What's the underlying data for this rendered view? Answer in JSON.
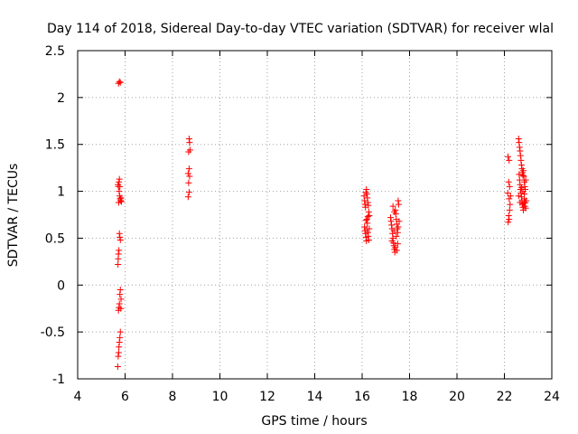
{
  "chart_data": {
    "type": "scatter",
    "title": "Day 114 of 2018, Sidereal Day-to-day VTEC variation (SDTVAR) for receiver wlal",
    "xlabel": "GPS time / hours",
    "ylabel": "SDTVAR / TECUs",
    "xlim": [
      4,
      24
    ],
    "ylim": [
      -1,
      2.5
    ],
    "xticks": [
      4,
      6,
      8,
      10,
      12,
      14,
      16,
      18,
      20,
      22,
      24
    ],
    "xtick_labels": [
      "4",
      "6",
      "8",
      "10",
      "12",
      "14",
      "16",
      "18",
      "20",
      "22",
      "24"
    ],
    "yticks": [
      -1,
      -0.5,
      0,
      0.5,
      1,
      1.5,
      2,
      2.5
    ],
    "ytick_labels": [
      "-1",
      "-0.5",
      "0",
      "0.5",
      "1",
      "1.5",
      "2",
      "2.5"
    ],
    "grid": true,
    "marker": "plus",
    "color": "#ff0000",
    "series": [
      {
        "name": "SDTVAR",
        "points": [
          [
            5.72,
            2.15
          ],
          [
            5.76,
            2.17
          ],
          [
            5.8,
            2.16
          ],
          [
            5.7,
            1.07
          ],
          [
            5.72,
            1.05
          ],
          [
            5.74,
            1.1
          ],
          [
            5.76,
            1.13
          ],
          [
            5.78,
            1.05
          ],
          [
            5.75,
            1.0
          ],
          [
            5.77,
            0.95
          ],
          [
            5.79,
            0.92
          ],
          [
            5.81,
            0.9
          ],
          [
            5.73,
            0.88
          ],
          [
            5.83,
            0.93
          ],
          [
            5.85,
            0.89
          ],
          [
            5.76,
            0.55
          ],
          [
            5.78,
            0.51
          ],
          [
            5.8,
            0.48
          ],
          [
            5.74,
            0.37
          ],
          [
            5.72,
            0.33
          ],
          [
            5.71,
            0.28
          ],
          [
            5.7,
            0.22
          ],
          [
            5.8,
            -0.05
          ],
          [
            5.78,
            -0.1
          ],
          [
            5.83,
            -0.15
          ],
          [
            5.76,
            -0.2
          ],
          [
            5.74,
            -0.24
          ],
          [
            5.72,
            -0.27
          ],
          [
            5.82,
            -0.25
          ],
          [
            5.8,
            -0.5
          ],
          [
            5.78,
            -0.56
          ],
          [
            5.76,
            -0.61
          ],
          [
            5.74,
            -0.66
          ],
          [
            5.73,
            -0.72
          ],
          [
            5.71,
            -0.76
          ],
          [
            5.69,
            -0.87
          ],
          [
            8.7,
            1.56
          ],
          [
            8.72,
            1.52
          ],
          [
            8.68,
            1.42
          ],
          [
            8.74,
            1.44
          ],
          [
            8.7,
            1.24
          ],
          [
            8.66,
            1.19
          ],
          [
            8.72,
            1.16
          ],
          [
            8.68,
            1.09
          ],
          [
            8.7,
            0.99
          ],
          [
            8.66,
            0.94
          ],
          [
            16.08,
            0.95
          ],
          [
            16.1,
            0.9
          ],
          [
            16.12,
            0.86
          ],
          [
            16.14,
            0.83
          ],
          [
            16.16,
            0.99
          ],
          [
            16.18,
            1.02
          ],
          [
            16.2,
            0.97
          ],
          [
            16.22,
            0.93
          ],
          [
            16.24,
            0.88
          ],
          [
            16.26,
            0.85
          ],
          [
            16.28,
            0.78
          ],
          [
            16.3,
            0.74
          ],
          [
            16.1,
            0.62
          ],
          [
            16.12,
            0.58
          ],
          [
            16.14,
            0.55
          ],
          [
            16.16,
            0.51
          ],
          [
            16.18,
            0.47
          ],
          [
            16.2,
            0.6
          ],
          [
            16.22,
            0.66
          ],
          [
            16.24,
            0.56
          ],
          [
            16.26,
            0.52
          ],
          [
            16.28,
            0.48
          ],
          [
            16.2,
            0.7
          ],
          [
            16.24,
            0.73
          ],
          [
            16.3,
            0.6
          ],
          [
            16.16,
            0.69
          ],
          [
            17.2,
            0.72
          ],
          [
            17.22,
            0.68
          ],
          [
            17.24,
            0.64
          ],
          [
            17.26,
            0.6
          ],
          [
            17.28,
            0.55
          ],
          [
            17.3,
            0.5
          ],
          [
            17.32,
            0.45
          ],
          [
            17.34,
            0.42
          ],
          [
            17.36,
            0.38
          ],
          [
            17.38,
            0.35
          ],
          [
            17.4,
            0.8
          ],
          [
            17.42,
            0.76
          ],
          [
            17.44,
            0.7
          ],
          [
            17.46,
            0.65
          ],
          [
            17.48,
            0.6
          ],
          [
            17.5,
            0.56
          ],
          [
            17.52,
            0.9
          ],
          [
            17.54,
            0.86
          ],
          [
            17.3,
            0.84
          ],
          [
            17.36,
            0.78
          ],
          [
            17.44,
            0.52
          ],
          [
            17.5,
            0.44
          ],
          [
            17.4,
            0.4
          ],
          [
            17.46,
            0.37
          ],
          [
            17.26,
            0.47
          ],
          [
            17.56,
            0.68
          ],
          [
            17.34,
            0.58
          ],
          [
            17.52,
            0.62
          ],
          [
            22.15,
            1.37
          ],
          [
            22.2,
            1.33
          ],
          [
            22.18,
            1.1
          ],
          [
            22.22,
            1.05
          ],
          [
            22.14,
            0.98
          ],
          [
            22.2,
            0.92
          ],
          [
            22.24,
            0.86
          ],
          [
            22.22,
            0.8
          ],
          [
            22.18,
            0.74
          ],
          [
            22.2,
            0.7
          ],
          [
            22.16,
            0.67
          ],
          [
            22.26,
            0.95
          ],
          [
            22.6,
            1.56
          ],
          [
            22.62,
            1.52
          ],
          [
            22.64,
            1.47
          ],
          [
            22.66,
            1.43
          ],
          [
            22.68,
            1.38
          ],
          [
            22.7,
            1.33
          ],
          [
            22.72,
            1.28
          ],
          [
            22.74,
            1.24
          ],
          [
            22.76,
            1.2
          ],
          [
            22.78,
            1.17
          ],
          [
            22.8,
            1.22
          ],
          [
            22.82,
            1.16
          ],
          [
            22.84,
            1.1
          ],
          [
            22.86,
            1.05
          ],
          [
            22.62,
            1.18
          ],
          [
            22.64,
            1.12
          ],
          [
            22.66,
            1.07
          ],
          [
            22.68,
            1.02
          ],
          [
            22.7,
            0.98
          ],
          [
            22.72,
            0.94
          ],
          [
            22.74,
            0.9
          ],
          [
            22.76,
            0.86
          ],
          [
            22.78,
            0.83
          ],
          [
            22.8,
            0.8
          ],
          [
            22.82,
            0.87
          ],
          [
            22.84,
            0.92
          ],
          [
            22.86,
            0.84
          ],
          [
            22.88,
            0.88
          ],
          [
            22.9,
            0.82
          ],
          [
            22.6,
            0.95
          ],
          [
            22.66,
            0.88
          ],
          [
            22.72,
            1.04
          ],
          [
            22.78,
            1.0
          ],
          [
            22.84,
            0.97
          ],
          [
            22.9,
            1.12
          ],
          [
            22.88,
            1.02
          ],
          [
            22.92,
            0.9
          ]
        ]
      }
    ]
  }
}
